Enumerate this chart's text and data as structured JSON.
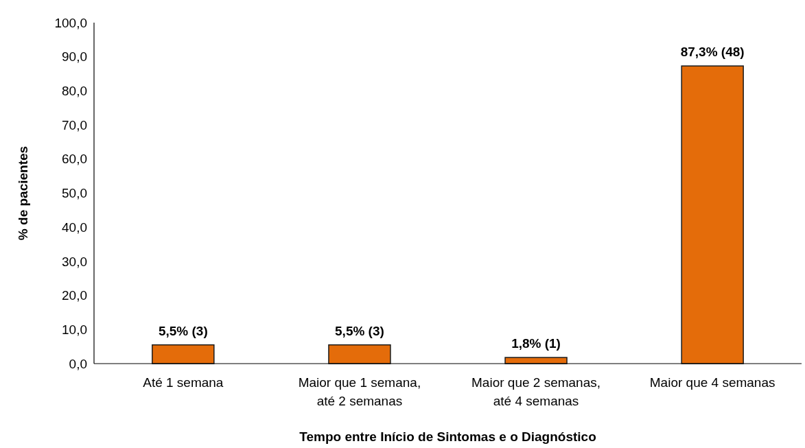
{
  "chart_data": {
    "type": "bar",
    "xlabel": "Tempo entre Início de Sintomas e o Diagnóstico",
    "ylabel": "% de pacientes",
    "categories": [
      "Até 1 semana",
      "Maior que 1 semana, até 2 semanas",
      "Maior que 2 semanas, até 4 semanas",
      "Maior que 4 semanas"
    ],
    "values": [
      5.5,
      5.5,
      1.8,
      87.3
    ],
    "value_labels": [
      "5,5% (3)",
      "5,5% (3)",
      "1,8% (1)",
      "87,3% (48)"
    ],
    "color": "#e46c0a",
    "ylim": [
      0,
      100
    ],
    "yticks": [
      {
        "value": 0,
        "label": "0,0"
      },
      {
        "value": 10,
        "label": "10,0"
      },
      {
        "value": 20,
        "label": "20,0"
      },
      {
        "value": 30,
        "label": "30,0"
      },
      {
        "value": 40,
        "label": "40,0"
      },
      {
        "value": 50,
        "label": "50,0"
      },
      {
        "value": 60,
        "label": "60,0"
      },
      {
        "value": 70,
        "label": "70,0"
      },
      {
        "value": 80,
        "label": "80,0"
      },
      {
        "value": 90,
        "label": "90,0"
      },
      {
        "value": 100,
        "label": "100,0"
      }
    ],
    "grid": false
  }
}
